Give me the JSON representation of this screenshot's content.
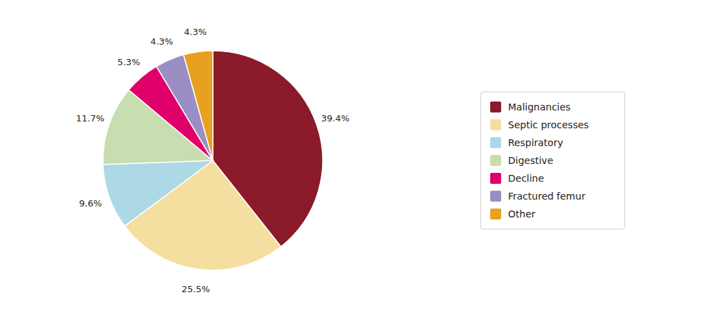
{
  "chart_data": {
    "type": "pie",
    "categories": [
      "Malignancies",
      "Septic processes",
      "Respiratory",
      "Digestive",
      "Decline",
      "Fractured femur",
      "Other"
    ],
    "values": [
      39.4,
      25.5,
      9.6,
      11.7,
      5.3,
      4.3,
      4.3
    ],
    "value_labels": [
      "39.4%",
      "25.5%",
      "9.6%",
      "11.7%",
      "5.3%",
      "4.3%",
      "4.3%"
    ],
    "colors": [
      "#8B1A2A",
      "#F5DFA0",
      "#ADD8E6",
      "#C8DDB0",
      "#E0006A",
      "#9B8EC4",
      "#E8A020"
    ],
    "data_labels": true,
    "legend": "right"
  }
}
